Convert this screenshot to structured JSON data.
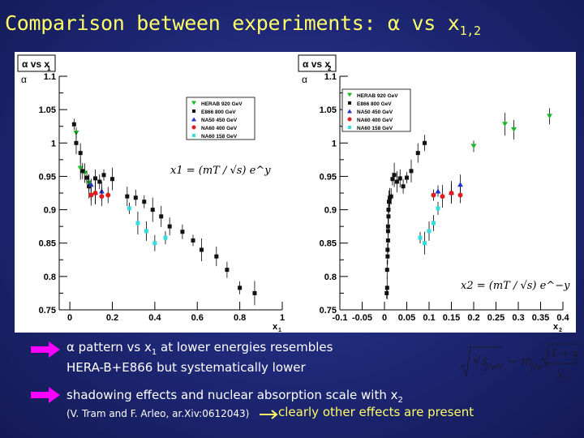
{
  "title": {
    "main": "Comparison between experiments: α vs x",
    "sub": "1,2"
  },
  "colors": {
    "herab": "#1db82a",
    "e866": "#111111",
    "na50_450": "#2233cc",
    "na60_400": "#e01d1d",
    "na60_158": "#33dde6"
  },
  "chart_data": [
    {
      "type": "scatter",
      "panel_label": "α vs x",
      "panel_label_sub": "1",
      "xlabel": "x",
      "xlabel_sub": "1",
      "ylabel": "α",
      "xlim": [
        -0.05,
        1.0
      ],
      "ylim": [
        0.75,
        1.1
      ],
      "xticks": [
        "0",
        "0.2",
        "0.4",
        "0.6",
        "0.8",
        "1"
      ],
      "yticks": [
        "0.75",
        "0.8",
        "0.85",
        "0.9",
        "0.95",
        "1",
        "1.05",
        "1.1"
      ],
      "legend": [
        "HERAB 920 GeV",
        "E866 800 GeV",
        "NA50 450 GeV",
        "NA60 400 GeV",
        "NA60 158 GeV"
      ],
      "formula": "x1 = (mT / √s) e^y",
      "series": [
        {
          "name": "HERAB 920 GeV",
          "marker": "triangle-down",
          "color": "#1db82a",
          "x": [
            0.03,
            0.05,
            0.07,
            0.09
          ],
          "y": [
            1.015,
            0.962,
            0.955,
            0.94
          ]
        },
        {
          "name": "E866 800 GeV",
          "marker": "square",
          "color": "#111111",
          "x": [
            0.02,
            0.03,
            0.05,
            0.06,
            0.08,
            0.09,
            0.1,
            0.12,
            0.14,
            0.16,
            0.2,
            0.27,
            0.31,
            0.35,
            0.39,
            0.43,
            0.47,
            0.53,
            0.58,
            0.62,
            0.69,
            0.74,
            0.8,
            0.87
          ],
          "y": [
            1.028,
            1.0,
            0.985,
            0.958,
            0.948,
            0.935,
            0.922,
            0.947,
            0.942,
            0.952,
            0.946,
            0.92,
            0.918,
            0.912,
            0.9,
            0.89,
            0.875,
            0.867,
            0.854,
            0.84,
            0.83,
            0.81,
            0.783,
            0.775
          ]
        },
        {
          "name": "NA50 450 GeV",
          "marker": "triangle-up",
          "color": "#2233cc",
          "x": [
            0.1,
            0.12,
            0.15
          ],
          "y": [
            0.938,
            0.926,
            0.928
          ]
        },
        {
          "name": "NA60 400 GeV",
          "marker": "circle",
          "color": "#e01d1d",
          "x": [
            0.1,
            0.12,
            0.15,
            0.18
          ],
          "y": [
            0.922,
            0.925,
            0.92,
            0.922
          ]
        },
        {
          "name": "NA60 158 GeV",
          "marker": "square",
          "color": "#33dde6",
          "x": [
            0.28,
            0.32,
            0.36,
            0.4,
            0.45
          ],
          "y": [
            0.902,
            0.88,
            0.868,
            0.85,
            0.858
          ]
        }
      ]
    },
    {
      "type": "scatter",
      "panel_label": "α vs x",
      "panel_label_sub": "2",
      "xlabel": "x",
      "xlabel_sub": "2",
      "ylabel": "α",
      "xlim": [
        -0.1,
        0.4
      ],
      "ylim": [
        0.75,
        1.1
      ],
      "xticks": [
        "-0.1",
        "-0.05",
        "0",
        "0.05",
        "0.1",
        "0.15",
        "0.2",
        "0.25",
        "0.3",
        "0.35",
        "0.4"
      ],
      "yticks": [
        "0.75",
        "0.8",
        "0.85",
        "0.9",
        "0.95",
        "1",
        "1.05",
        "1.1"
      ],
      "legend": [
        "HERAB 920 GeV",
        "E866 800 GeV",
        "NA50 450 GeV",
        "NA60 400 GeV",
        "NA60 158 GeV"
      ],
      "formula": "x2 = (mT / √s) e^−y",
      "series": [
        {
          "name": "HERAB 920 GeV",
          "marker": "triangle-down",
          "color": "#1db82a",
          "x": [
            0.2,
            0.27,
            0.29,
            0.37
          ],
          "y": [
            0.995,
            1.028,
            1.02,
            1.04
          ]
        },
        {
          "name": "E866 800 GeV",
          "marker": "square",
          "color": "#111111",
          "x": [
            0.005,
            0.006,
            0.006,
            0.007,
            0.007,
            0.008,
            0.008,
            0.008,
            0.009,
            0.009,
            0.01,
            0.012,
            0.015,
            0.018,
            0.022,
            0.028,
            0.035,
            0.042,
            0.05,
            0.06,
            0.075,
            0.09
          ],
          "y": [
            0.775,
            0.783,
            0.81,
            0.83,
            0.84,
            0.854,
            0.868,
            0.875,
            0.89,
            0.9,
            0.912,
            0.918,
            0.92,
            0.946,
            0.952,
            0.942,
            0.947,
            0.935,
            0.948,
            0.958,
            0.985,
            1.0
          ]
        },
        {
          "name": "NA50 450 GeV",
          "marker": "triangle-up",
          "color": "#2233cc",
          "x": [
            0.12,
            0.15,
            0.17
          ],
          "y": [
            0.928,
            0.926,
            0.938
          ]
        },
        {
          "name": "NA60 400 GeV",
          "marker": "circle",
          "color": "#e01d1d",
          "x": [
            0.11,
            0.13,
            0.15,
            0.17
          ],
          "y": [
            0.922,
            0.92,
            0.925,
            0.922
          ]
        },
        {
          "name": "NA60 158 GeV",
          "marker": "square",
          "color": "#33dde6",
          "x": [
            0.08,
            0.09,
            0.1,
            0.11,
            0.12
          ],
          "y": [
            0.858,
            0.85,
            0.868,
            0.88,
            0.902
          ]
        }
      ]
    }
  ],
  "bullets": {
    "b1_line1_a": "α pattern vs x",
    "b1_line1_sub": "1",
    "b1_line1_b": " at lower energies resembles",
    "b1_line2": "HERA-B+E866 but systematically lower",
    "b2_line1_a": "shadowing effects and nuclear absorption scale with x",
    "b2_line1_sub": "2",
    "b2_cite": "(V. Tram and F. Arleo, ar.Xiv:0612043)",
    "b2_conclusion": " clearly other effects are present"
  },
  "formula_bottom": {
    "left": "√s",
    "left_sub": "J/ψN",
    "middle": "~ m",
    "middle_sub": "J/ψ",
    "num": "1 + x",
    "num_sub": "2",
    "den": "x",
    "den_sub": "2"
  }
}
